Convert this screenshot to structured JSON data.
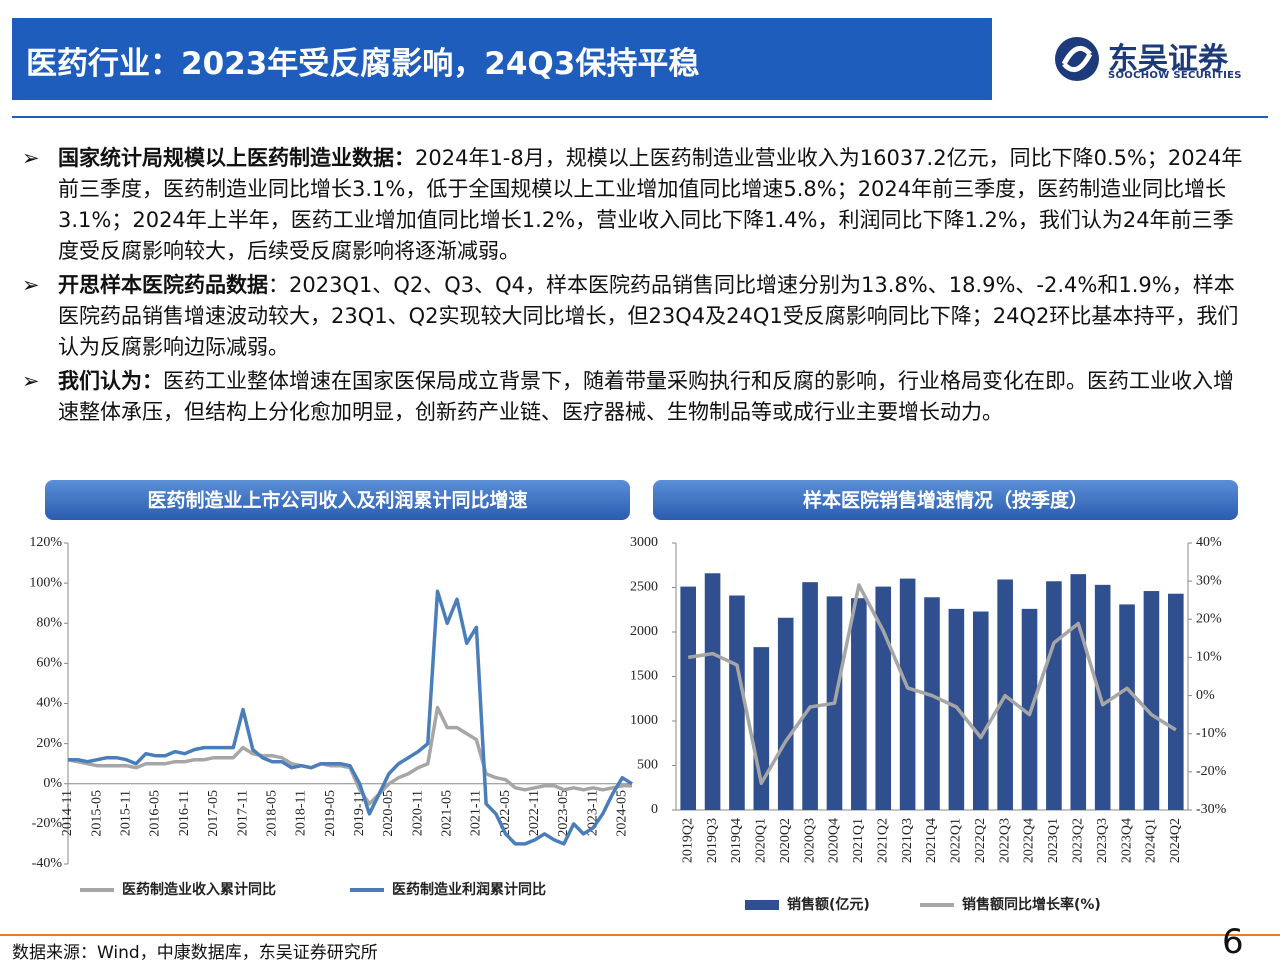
{
  "header": {
    "title": "医药行业：2023年受反腐影响，24Q3保持平稳",
    "logo_cn": "东吴证券",
    "logo_en": "SOOCHOW SECURITIES"
  },
  "bullets": [
    {
      "bold": "国家统计局规模以上医药制造业数据：",
      "text": "2024年1-8月，规模以上医药制造业营业收入为16037.2亿元，同比下降0.5%；2024年前三季度，医药制造业同比增长3.1%，低于全国规模以上工业增加值同比增速5.8%；2024年前三季度，医药制造业同比增长3.1%；2024年上半年，医药工业增加值同比增长1.2%，营业收入同比下降1.4%，利润同比下降1.2%，我们认为24年前三季度受反腐影响较大，后续受反腐影响将逐渐减弱。"
    },
    {
      "bold": "开思样本医院药品数据",
      "text": "：2023Q1、Q2、Q3、Q4，样本医院药品销售同比增速分别为13.8%、18.9%、-2.4%和1.9%，样本医院药品销售增速波动较大，23Q1、Q2实现较大同比增长，但23Q4及24Q1受反腐影响同比下降；24Q2环比基本持平，我们认为反腐影响边际减弱。"
    },
    {
      "bold": "我们认为：",
      "text": "医药工业整体增速在国家医保局成立背景下，随着带量采购执行和反腐的影响，行业格局变化在即。医药工业收入增速整体承压，但结构上分化愈加明显，创新药产业链、医疗器械、生物制品等或成行业主要增长动力。"
    }
  ],
  "footer": {
    "source": "数据来源：Wind，中康数据库，东吴证券研究所",
    "page": "6"
  },
  "chart_data": [
    {
      "type": "line",
      "title": "医药制造业上市公司收入及利润累计同比增速",
      "categories": [
        "2014-11",
        null,
        null,
        "2015-05",
        null,
        null,
        "2015-11",
        null,
        null,
        "2016-05",
        null,
        null,
        "2016-11",
        null,
        null,
        "2017-05",
        null,
        null,
        "2017-11",
        null,
        null,
        "2018-05",
        null,
        null,
        "2018-11",
        null,
        null,
        "2019-05",
        null,
        null,
        "2019-11",
        null,
        null,
        "2020-05",
        null,
        null,
        "2020-11",
        null,
        null,
        "2021-05",
        null,
        null,
        "2021-11",
        null,
        null,
        "2022-05",
        null,
        null,
        "2022-11",
        null,
        null,
        "2023-05",
        null,
        null,
        "2023-11",
        null,
        null,
        "2024-05",
        null
      ],
      "series": [
        {
          "name": "医药制造业收入累计同比",
          "color": "#a6a6a6",
          "values": [
            12,
            11,
            10,
            9,
            9,
            9,
            9,
            8,
            10,
            10,
            10,
            11,
            11,
            12,
            12,
            13,
            13,
            13,
            18,
            15,
            14,
            14,
            13,
            10,
            9,
            8,
            10,
            9,
            9,
            8,
            -3,
            -10,
            -5,
            0,
            3,
            5,
            8,
            10,
            38,
            28,
            28,
            25,
            22,
            5,
            3,
            2,
            -2,
            -3,
            -2,
            -1,
            -1,
            -3,
            -2,
            -3,
            -2,
            -3,
            -2,
            -1,
            -1
          ]
        },
        {
          "name": "医药制造业利润累计同比",
          "color": "#4a7ebb",
          "values": [
            12,
            12,
            11,
            12,
            13,
            13,
            12,
            10,
            15,
            14,
            14,
            16,
            15,
            17,
            18,
            18,
            18,
            18,
            37,
            17,
            13,
            11,
            11,
            8,
            9,
            8,
            10,
            10,
            10,
            9,
            0,
            -15,
            -5,
            5,
            10,
            13,
            16,
            20,
            96,
            80,
            92,
            70,
            78,
            -10,
            -15,
            -25,
            -30,
            -30,
            -28,
            -25,
            -28,
            -30,
            -20,
            -25,
            -22,
            -15,
            -5,
            3,
            0
          ]
        }
      ],
      "ylim": [
        -40,
        120
      ],
      "yticks": [
        {
          "value": -40,
          "label": "-40%"
        },
        {
          "value": -20,
          "label": "-20%"
        },
        {
          "value": 0,
          "label": "0%"
        },
        {
          "value": 20,
          "label": "20%"
        },
        {
          "value": 40,
          "label": "40%"
        },
        {
          "value": 60,
          "label": "60%"
        },
        {
          "value": 80,
          "label": "80%"
        },
        {
          "value": 100,
          "label": "100%"
        },
        {
          "value": 120,
          "label": "120%"
        }
      ]
    },
    {
      "type": "bar",
      "title": "样本医院销售增速情况（按季度）",
      "categories": [
        "2019Q2",
        "2019Q3",
        "2019Q4",
        "2020Q1",
        "2020Q2",
        "2020Q3",
        "2020Q4",
        "2021Q1",
        "2021Q2",
        "2021Q3",
        "2021Q4",
        "2022Q1",
        "2022Q2",
        "2022Q3",
        "2022Q4",
        "2023Q1",
        "2023Q2",
        "2023Q3",
        "2023Q4",
        "2024Q1",
        "2024Q2"
      ],
      "series": [
        {
          "name": "销售额(亿元)",
          "color": "#2f4f8f",
          "values": [
            2510,
            2660,
            2410,
            1830,
            2160,
            2560,
            2400,
            2380,
            2510,
            2600,
            2390,
            2260,
            2230,
            2590,
            2260,
            2570,
            2650,
            2530,
            2310,
            2460,
            2430
          ]
        },
        {
          "name": "销售额同比增长率(%)",
          "color": "#a6a6a6",
          "axis": "y2",
          "values": [
            10,
            11,
            8,
            -23,
            -12,
            -3,
            -2,
            29,
            17,
            2,
            0,
            -3,
            -11,
            0,
            -5,
            13.8,
            18.9,
            -2.4,
            1.9,
            -5,
            -9
          ]
        }
      ],
      "ylim": [
        0,
        3000
      ],
      "yticks": [
        0,
        500,
        1000,
        1500,
        2000,
        2500,
        3000
      ],
      "y2lim": [
        -30,
        40
      ],
      "y2ticks": [
        {
          "value": -30,
          "label": "-30%"
        },
        {
          "value": -20,
          "label": "-20%"
        },
        {
          "value": -10,
          "label": "-10%"
        },
        {
          "value": 0,
          "label": "0%"
        },
        {
          "value": 10,
          "label": "10%"
        },
        {
          "value": 20,
          "label": "20%"
        },
        {
          "value": 30,
          "label": "30%"
        },
        {
          "value": 40,
          "label": "40%"
        }
      ]
    }
  ]
}
